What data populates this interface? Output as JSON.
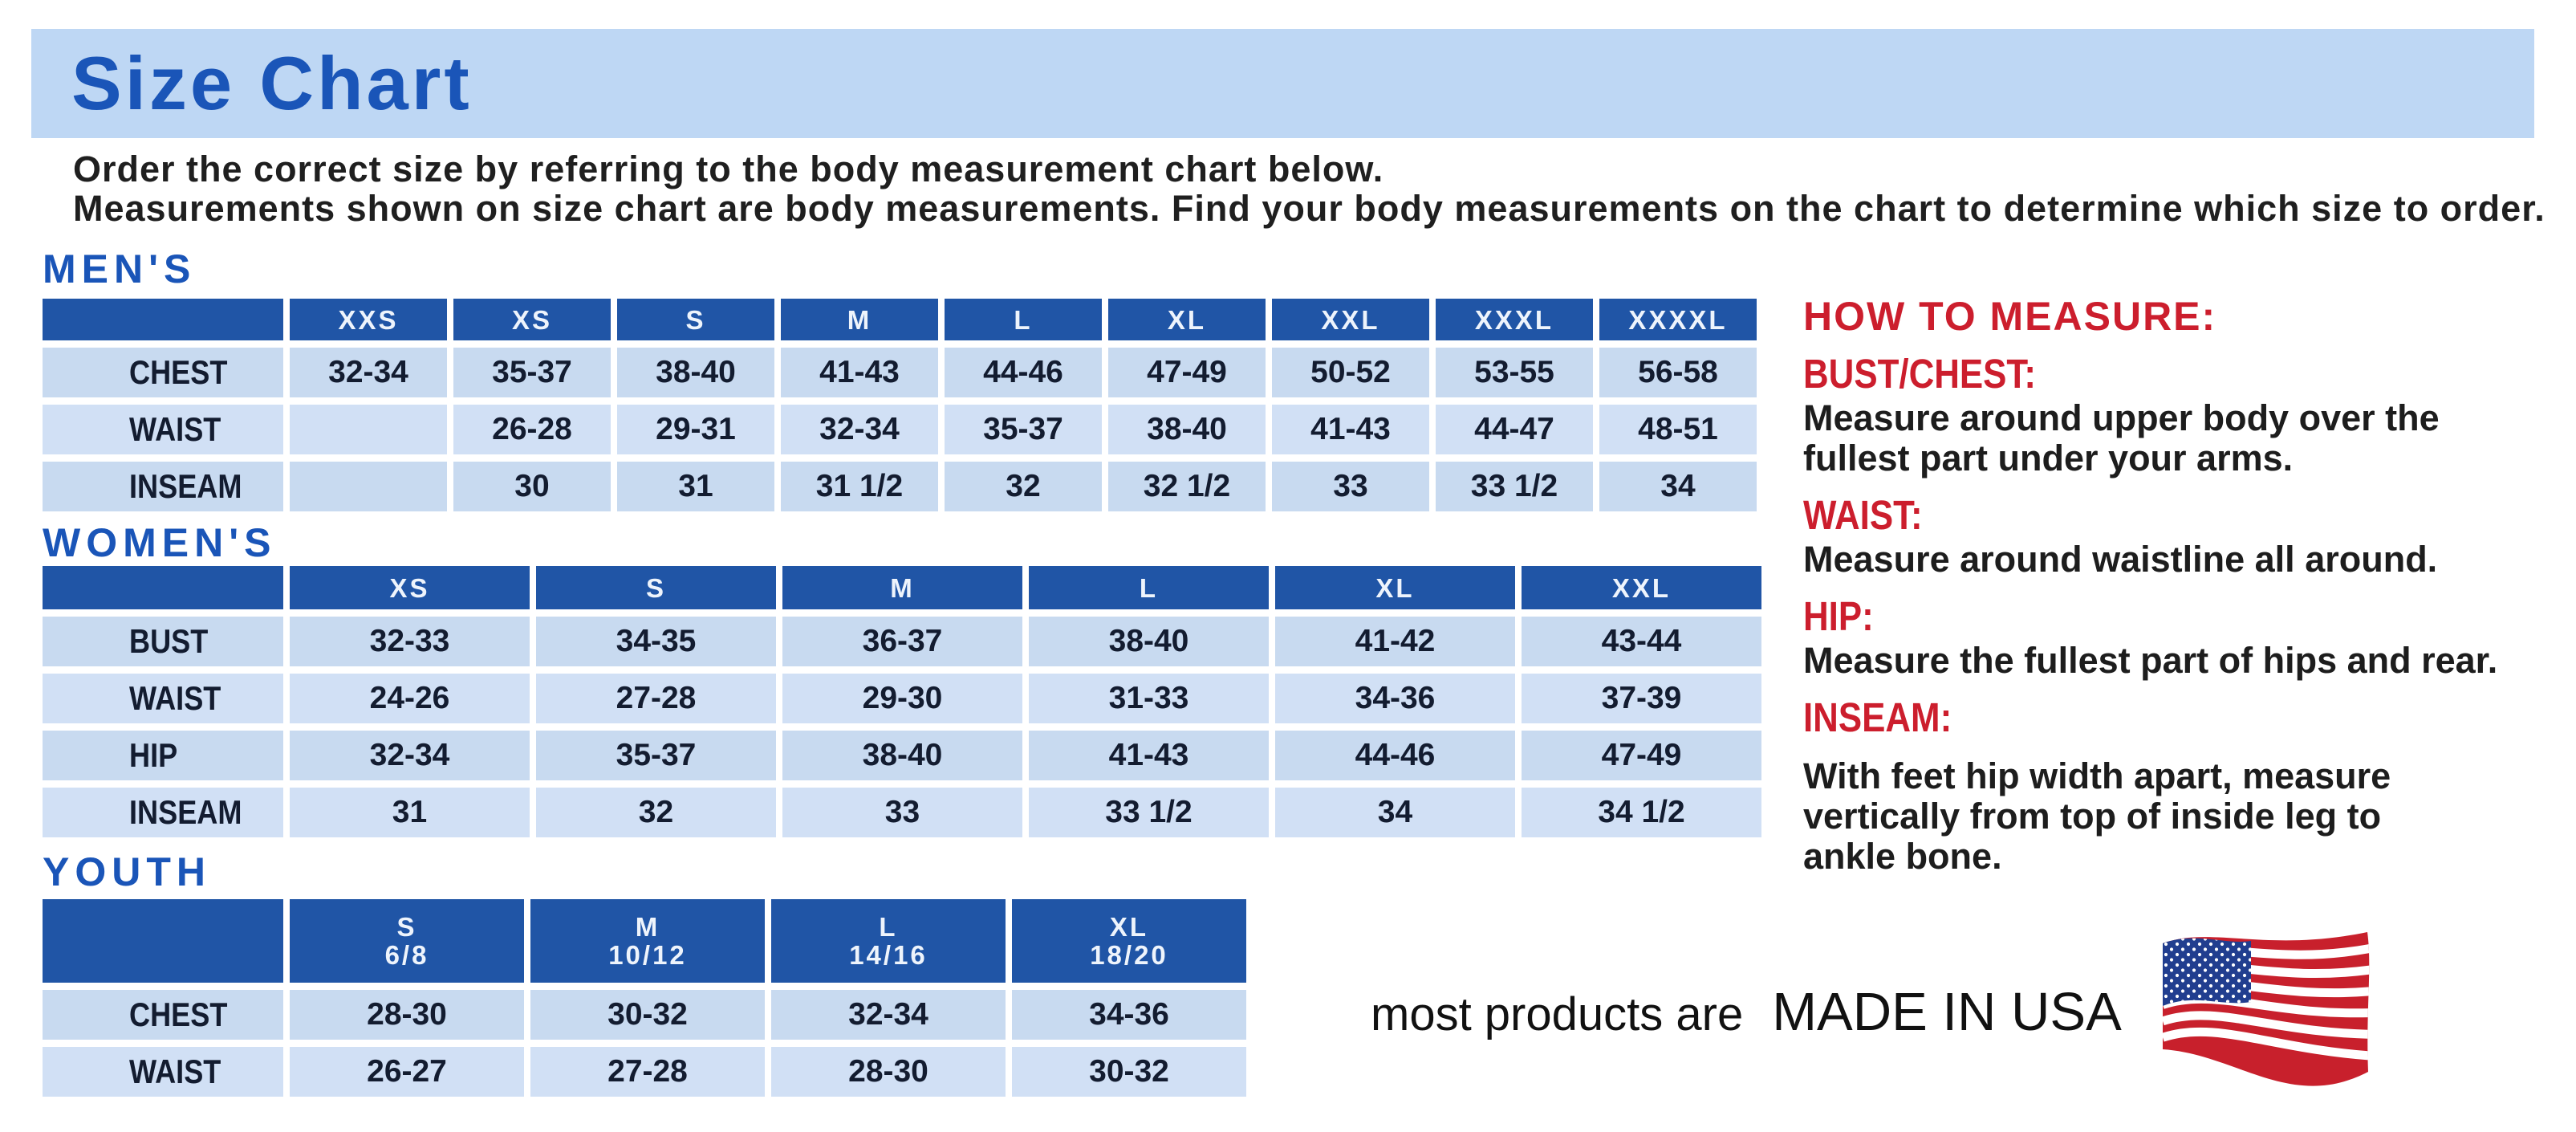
{
  "banner": {
    "title": "Size Chart"
  },
  "intro": {
    "line1": "Order the correct size by referring to the body measurement chart below.",
    "line2": "Measurements shown on size chart are body measurements.  Find your body measurements on the chart to determine which size to order."
  },
  "tables": [
    {
      "id": "men",
      "label": "MEN'S",
      "sizes": [
        "XXS",
        "XS",
        "S",
        "M",
        "L",
        "XL",
        "XXL",
        "XXXL",
        "XXXXL"
      ],
      "rows": [
        {
          "label": "CHEST",
          "values": [
            "32-34",
            "35-37",
            "38-40",
            "41-43",
            "44-46",
            "47-49",
            "50-52",
            "53-55",
            "56-58"
          ]
        },
        {
          "label": "WAIST",
          "values": [
            "",
            "26-28",
            "29-31",
            "32-34",
            "35-37",
            "38-40",
            "41-43",
            "44-47",
            "48-51"
          ]
        },
        {
          "label": "INSEAM",
          "values": [
            "",
            "30",
            "31",
            "31 1/2",
            "32",
            "32 1/2",
            "33",
            "33 1/2",
            "34"
          ]
        }
      ]
    },
    {
      "id": "women",
      "label": "WOMEN'S",
      "sizes": [
        "XS",
        "S",
        "M",
        "L",
        "XL",
        "XXL"
      ],
      "rows": [
        {
          "label": "BUST",
          "values": [
            "32-33",
            "34-35",
            "36-37",
            "38-40",
            "41-42",
            "43-44"
          ]
        },
        {
          "label": "WAIST",
          "values": [
            "24-26",
            "27-28",
            "29-30",
            "31-33",
            "34-36",
            "37-39"
          ]
        },
        {
          "label": "HIP",
          "values": [
            "32-34",
            "35-37",
            "38-40",
            "41-43",
            "44-46",
            "47-49"
          ]
        },
        {
          "label": "INSEAM",
          "values": [
            "31",
            "32",
            "33",
            "33 1/2",
            "34",
            "34 1/2"
          ]
        }
      ]
    },
    {
      "id": "youth",
      "label": "YOUTH",
      "sizes": [
        "S\n6/8",
        "M\n10/12",
        "L\n14/16",
        "XL\n18/20"
      ],
      "rows": [
        {
          "label": "CHEST",
          "values": [
            "28-30",
            "30-32",
            "32-34",
            "34-36"
          ]
        },
        {
          "label": "WAIST",
          "values": [
            "26-27",
            "27-28",
            "28-30",
            "30-32"
          ]
        }
      ]
    }
  ],
  "how_to_measure": {
    "title": "HOW TO MEASURE:",
    "sections": [
      {
        "label": "BUST/CHEST:",
        "text": "Measure around upper body over the\nfullest part under your arms."
      },
      {
        "label": "WAIST:",
        "text": "Measure around waistline all around."
      },
      {
        "label": "HIP:",
        "text": "Measure the fullest part of hips and rear."
      },
      {
        "label": "INSEAM:",
        "text": "With feet hip width apart, measure\nvertically from top of inside leg to\nankle bone."
      }
    ]
  },
  "footer": {
    "prefix": "most products are",
    "made_in": "MADE IN USA",
    "flag_icon": "us-flag-icon"
  },
  "colors": {
    "banner_bg": "#bed7f4",
    "title_blue": "#1a55b8",
    "header_cell_blue": "#2055a6",
    "cell_bg": "#c8daf0",
    "cell_bg_alt": "#d1e0f5",
    "red": "#cc1e2d",
    "cell_text": "#131c30"
  }
}
